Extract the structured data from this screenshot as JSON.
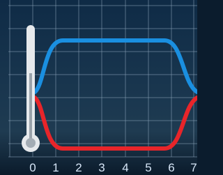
{
  "axis": {
    "labels": [
      "0",
      "1",
      "2",
      "3",
      "4",
      "5",
      "6",
      "7"
    ]
  }
}
